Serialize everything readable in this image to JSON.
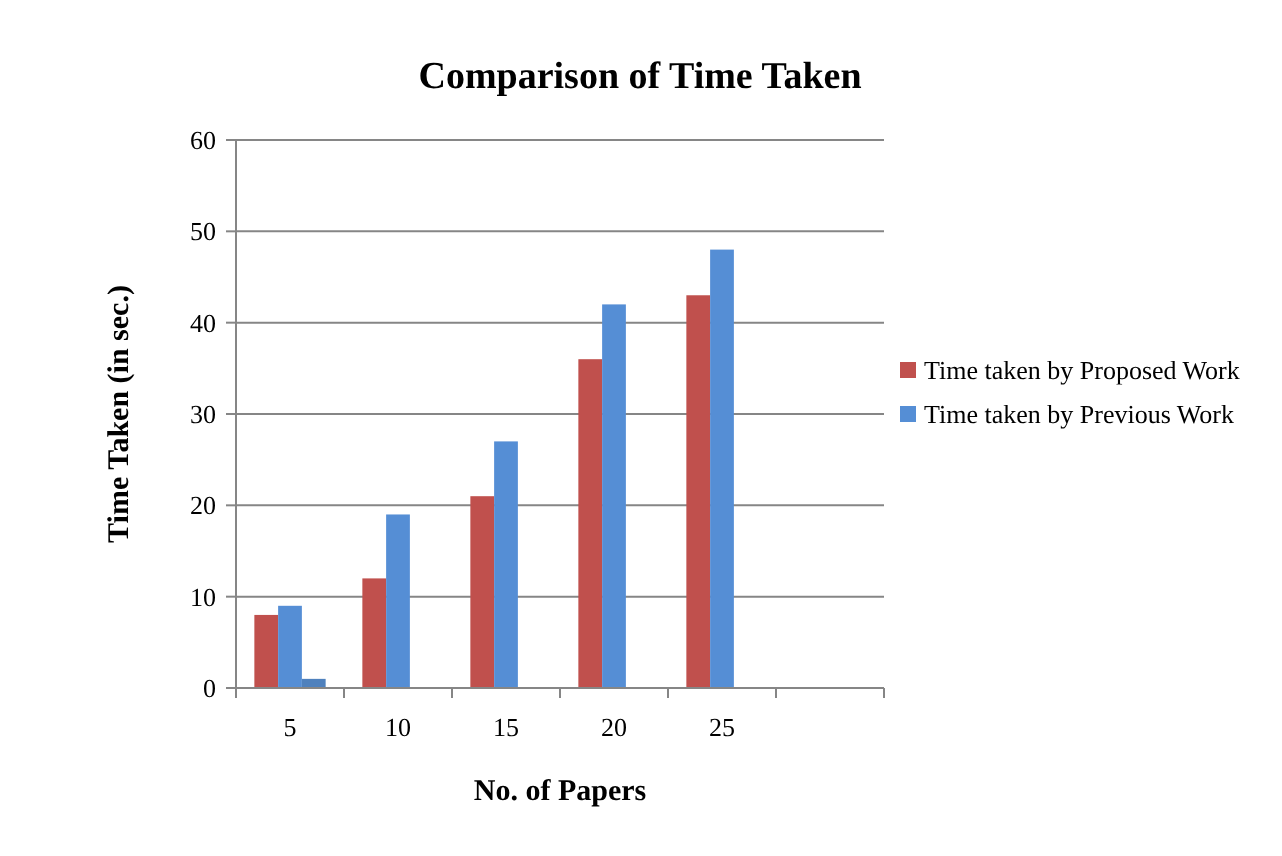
{
  "chart_data": {
    "type": "bar",
    "title": "Comparison  of Time Taken",
    "xlabel": "No. of Papers",
    "ylabel": "Time Taken (in sec.)",
    "categories": [
      "5",
      "10",
      "15",
      "20",
      "25",
      null
    ],
    "series": [
      {
        "name": "Time taken by Proposed Work",
        "color": "#c0504d",
        "values": [
          8,
          12,
          21,
          36,
          43,
          null
        ]
      },
      {
        "name": "Time taken by Previous Work",
        "color": "#558ed5",
        "values": [
          9,
          19,
          27,
          42,
          48,
          null
        ]
      },
      {
        "color": "#4f81bd",
        "values": [
          1,
          null,
          null,
          null,
          null,
          null
        ]
      }
    ],
    "ylim": [
      0,
      60
    ],
    "yticks": [
      0,
      10,
      20,
      30,
      40,
      50,
      60
    ],
    "grid": "y",
    "legend": "right"
  }
}
